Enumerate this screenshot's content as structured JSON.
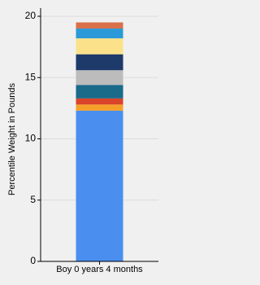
{
  "chart_data": {
    "type": "stacked_bar",
    "y_label": "Percentile Weight in Pounds",
    "categories": [
      "Boy 0 years 4 months"
    ],
    "series": [
      {
        "color": "#4a8ff0",
        "values": [
          12.3
        ]
      },
      {
        "color": "#f5a02a",
        "values": [
          0.5
        ]
      },
      {
        "color": "#d9442a",
        "values": [
          0.5
        ]
      },
      {
        "color": "#1a6a8a",
        "values": [
          1.1
        ]
      },
      {
        "color": "#bcbcbc",
        "values": [
          1.2
        ]
      },
      {
        "color": "#1e3a6a",
        "values": [
          1.3
        ]
      },
      {
        "color": "#fbe28a",
        "values": [
          1.3
        ]
      },
      {
        "color": "#2a9ad8",
        "values": [
          0.8
        ]
      },
      {
        "color": "#d9704a",
        "values": [
          0.5
        ]
      }
    ],
    "ylim": [
      0,
      20
    ],
    "yticks": [
      0,
      5,
      10,
      15,
      20
    ],
    "grid": true
  }
}
